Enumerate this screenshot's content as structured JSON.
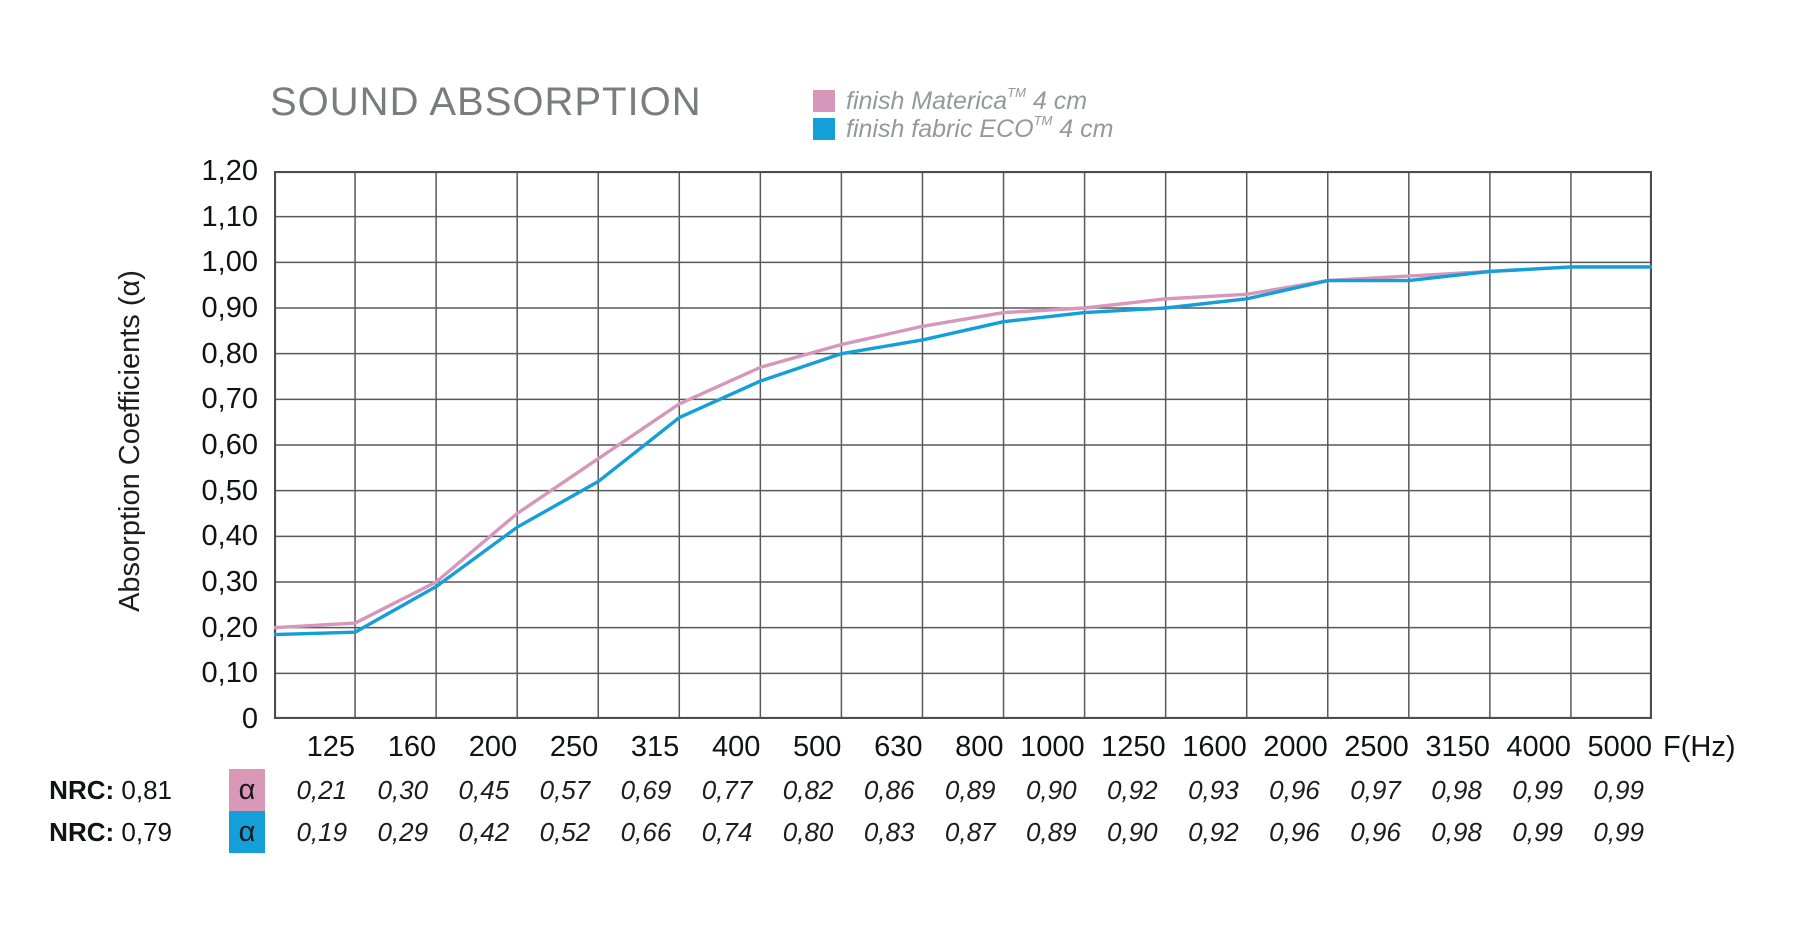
{
  "title": "SOUND ABSORPTION",
  "legend": {
    "items": [
      {
        "name": "finish Materica",
        "tm": "TM",
        "size": "4 cm",
        "color": "#d697ba"
      },
      {
        "name": "finish fabric ECO",
        "tm": "TM",
        "size": "4 cm",
        "color": "#149fd9"
      }
    ]
  },
  "chart_data": {
    "type": "line",
    "title": "SOUND ABSORPTION",
    "xlabel": "F(Hz)",
    "ylabel": "Absorption Coefficients (α)",
    "x_categories": [
      "125",
      "160",
      "200",
      "250",
      "315",
      "400",
      "500",
      "630",
      "800",
      "1000",
      "1250",
      "1600",
      "2000",
      "2500",
      "3150",
      "4000",
      "5000"
    ],
    "y_ticks": [
      "1,20",
      "1,10",
      "1,00",
      "0,90",
      "0,80",
      "0,70",
      "0,60",
      "0,50",
      "0,40",
      "0,30",
      "0,20",
      "0,10",
      "0"
    ],
    "ylim": [
      0,
      1.2
    ],
    "grid": true,
    "legend_position": "top",
    "series": [
      {
        "name": "finish Materica 4 cm",
        "color": "#d697ba",
        "axis_start_value": 0.2,
        "values": [
          0.21,
          0.3,
          0.45,
          0.57,
          0.69,
          0.77,
          0.82,
          0.86,
          0.89,
          0.9,
          0.92,
          0.93,
          0.96,
          0.97,
          0.98,
          0.99,
          0.99
        ]
      },
      {
        "name": "finish fabric ECO 4 cm",
        "color": "#149fd9",
        "axis_start_value": 0.185,
        "values": [
          0.19,
          0.29,
          0.42,
          0.52,
          0.66,
          0.74,
          0.8,
          0.83,
          0.87,
          0.89,
          0.9,
          0.92,
          0.96,
          0.96,
          0.98,
          0.99,
          0.99
        ]
      }
    ]
  },
  "table": {
    "rows": [
      {
        "nrc_label": "NRC:",
        "nrc_value": " 0,81",
        "alpha": "α",
        "color": "#d998b8",
        "values": [
          "0,21",
          "0,30",
          "0,45",
          "0,57",
          "0,69",
          "0,77",
          "0,82",
          "0,86",
          "0,89",
          "0,90",
          "0,92",
          "0,93",
          "0,96",
          "0,97",
          "0,98",
          "0,99",
          "0,99"
        ]
      },
      {
        "nrc_label": "NRC:",
        "nrc_value": " 0,79",
        "alpha": "α",
        "color": "#149fd9",
        "values": [
          "0,19",
          "0,29",
          "0,42",
          "0,52",
          "0,66",
          "0,74",
          "0,80",
          "0,83",
          "0,87",
          "0,89",
          "0,90",
          "0,92",
          "0,96",
          "0,96",
          "0,98",
          "0,99",
          "0,99"
        ]
      }
    ]
  }
}
